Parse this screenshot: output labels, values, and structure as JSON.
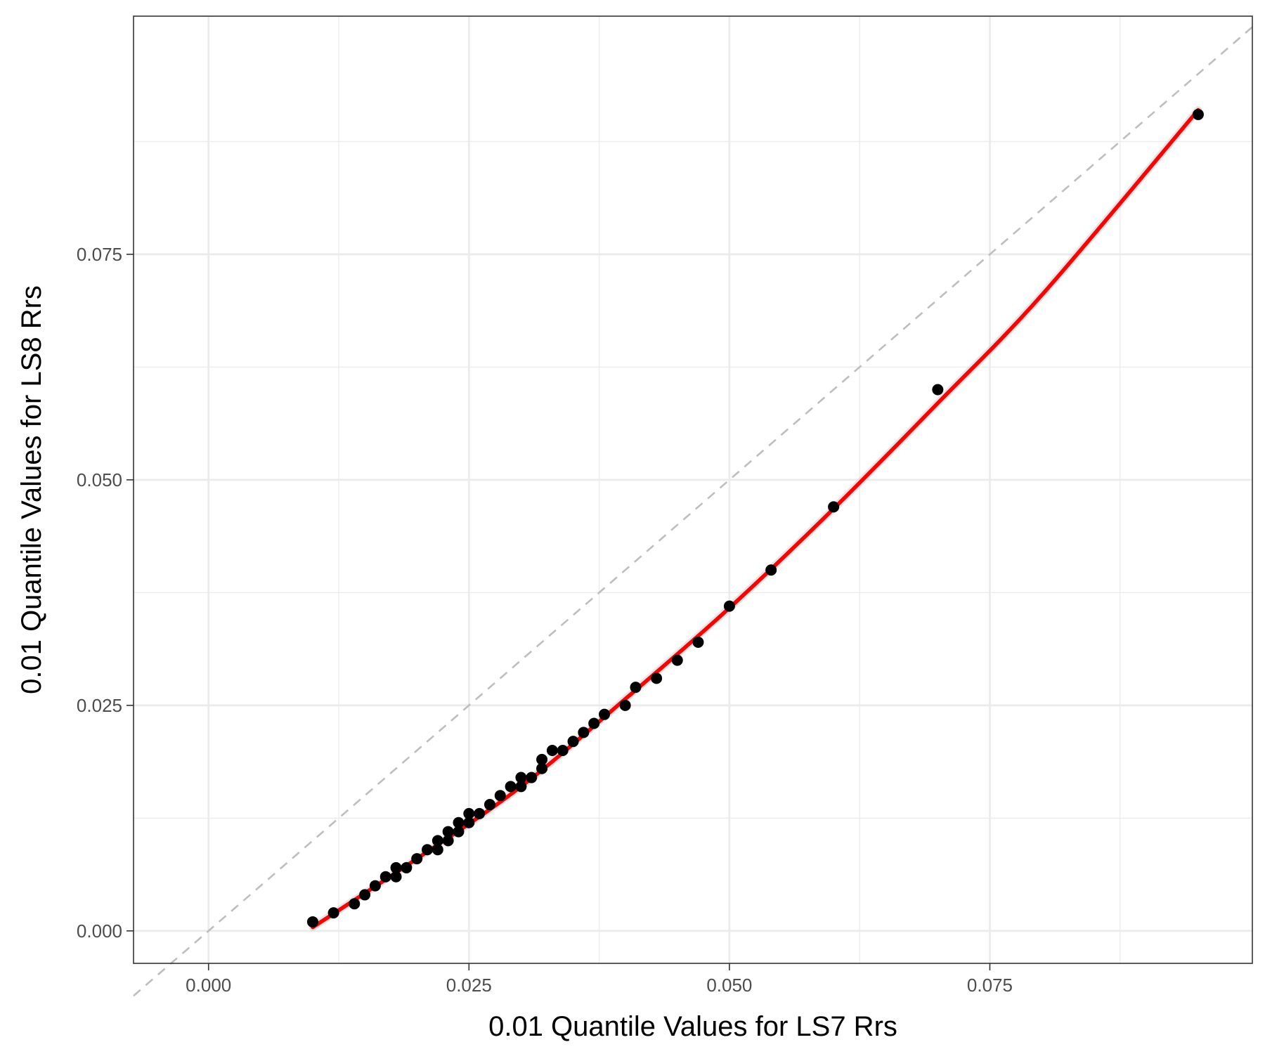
{
  "chart_data": {
    "type": "scatter",
    "title": "",
    "xlabel": "0.01 Quantile Values for LS7 Rrs",
    "ylabel": "0.01 Quantile Values for LS8 Rrs",
    "xlim": [
      -0.0072,
      0.1002
    ],
    "ylim": [
      -0.0036,
      0.1014
    ],
    "x_ticks": [
      0.0,
      0.025,
      0.05,
      0.075
    ],
    "x_tick_labels": [
      "0.000",
      "0.025",
      "0.050",
      "0.075"
    ],
    "y_ticks": [
      0.0,
      0.025,
      0.05,
      0.075
    ],
    "y_tick_labels": [
      "0.000",
      "0.025",
      "0.050",
      "0.075"
    ],
    "grid": true,
    "legend": "none",
    "series": [
      {
        "kind": "points",
        "color": "#000000",
        "x": [
          0.01,
          0.012,
          0.014,
          0.015,
          0.016,
          0.017,
          0.018,
          0.018,
          0.019,
          0.02,
          0.021,
          0.022,
          0.022,
          0.023,
          0.023,
          0.024,
          0.024,
          0.025,
          0.025,
          0.026,
          0.027,
          0.028,
          0.029,
          0.03,
          0.03,
          0.031,
          0.032,
          0.032,
          0.033,
          0.034,
          0.035,
          0.036,
          0.037,
          0.038,
          0.04,
          0.041,
          0.043,
          0.045,
          0.047,
          0.05,
          0.054,
          0.06,
          0.07,
          0.095
        ],
        "y": [
          0.001,
          0.002,
          0.003,
          0.004,
          0.005,
          0.006,
          0.006,
          0.007,
          0.007,
          0.008,
          0.009,
          0.009,
          0.01,
          0.01,
          0.011,
          0.011,
          0.012,
          0.012,
          0.013,
          0.013,
          0.014,
          0.015,
          0.016,
          0.016,
          0.017,
          0.017,
          0.018,
          0.019,
          0.02,
          0.02,
          0.021,
          0.022,
          0.023,
          0.024,
          0.025,
          0.027,
          0.028,
          0.03,
          0.032,
          0.036,
          0.04,
          0.047,
          0.06,
          0.0905
        ]
      },
      {
        "kind": "fit",
        "color": "#ff0000",
        "x": [
          0.01,
          0.02,
          0.03,
          0.04,
          0.05,
          0.06,
          0.07,
          0.08,
          0.095
        ],
        "y": [
          0.0004,
          0.008,
          0.016,
          0.0257,
          0.0358,
          0.0468,
          0.0585,
          0.0705,
          0.091
        ]
      },
      {
        "kind": "reference",
        "color": "#bebebe",
        "x": [
          -0.0072,
          0.1002
        ],
        "y": [
          -0.0072,
          0.1002
        ]
      }
    ]
  }
}
